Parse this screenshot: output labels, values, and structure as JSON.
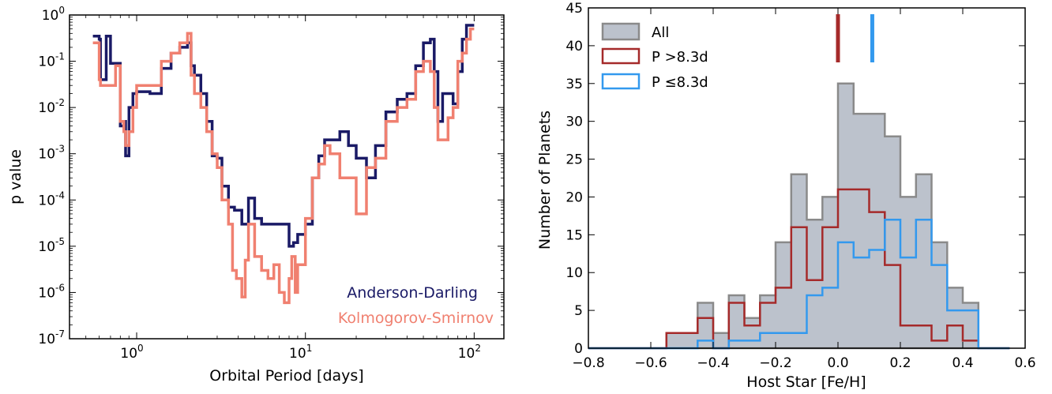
{
  "chart_data": [
    {
      "type": "line",
      "xlabel": "Orbital Period [days]",
      "ylabel": "p value",
      "xscale": "log",
      "yscale": "log",
      "xlim": [
        0.4,
        150
      ],
      "ylim": [
        1e-07,
        1
      ],
      "xticks": [
        {
          "value": 1,
          "base": "10",
          "exp": "0"
        },
        {
          "value": 10,
          "base": "10",
          "exp": "1"
        },
        {
          "value": 100,
          "base": "10",
          "exp": "2"
        }
      ],
      "yticks": [
        {
          "value": 1,
          "base": "10",
          "exp": "0"
        },
        {
          "value": 0.1,
          "base": "10",
          "exp": "-1"
        },
        {
          "value": 0.01,
          "base": "10",
          "exp": "-2"
        },
        {
          "value": 0.001,
          "base": "10",
          "exp": "-3"
        },
        {
          "value": 0.0001,
          "base": "10",
          "exp": "-4"
        },
        {
          "value": 1e-05,
          "base": "10",
          "exp": "-5"
        },
        {
          "value": 1e-06,
          "base": "10",
          "exp": "-6"
        },
        {
          "value": 1e-07,
          "base": "10",
          "exp": "-7"
        }
      ],
      "annotations": [
        {
          "text": "Anderson-Darling",
          "color": "#1a1a66"
        },
        {
          "text": "Kolmogorov-Smirnov",
          "color": "#f08070"
        }
      ],
      "series": [
        {
          "color": "#1a1a66",
          "x": [
            0.55,
            0.6,
            0.61,
            0.64,
            0.66,
            0.7,
            0.75,
            0.8,
            0.84,
            0.86,
            0.9,
            0.95,
            1.0,
            1.2,
            1.4,
            1.6,
            1.8,
            2.0,
            2.1,
            2.2,
            2.4,
            2.6,
            2.8,
            3.0,
            3.2,
            3.5,
            3.8,
            4.2,
            4.6,
            5.0,
            5.5,
            6.0,
            7.0,
            8.0,
            8.5,
            9.0,
            10.0,
            11.0,
            12.0,
            13.0,
            14.0,
            16.0,
            18.0,
            20.0,
            23.0,
            26.0,
            30.0,
            35.0,
            40.0,
            45.0,
            50.0,
            55.0,
            58.0,
            61.0,
            65.0,
            70.0,
            75.0,
            80.0,
            85.0,
            90.0,
            95.0,
            100.0
          ],
          "y": [
            0.35,
            0.3,
            0.04,
            0.04,
            0.35,
            0.09,
            0.09,
            0.004,
            0.005,
            0.0009,
            0.01,
            0.02,
            0.022,
            0.02,
            0.07,
            0.15,
            0.2,
            0.25,
            0.08,
            0.05,
            0.02,
            0.005,
            0.0009,
            0.0008,
            0.0002,
            7e-05,
            6e-05,
            3e-05,
            0.00011,
            4e-05,
            3e-05,
            3e-05,
            3e-05,
            1e-05,
            1.2e-05,
            1.8e-05,
            3e-05,
            0.0003,
            0.0009,
            0.002,
            0.002,
            0.003,
            0.0015,
            0.0008,
            0.0003,
            0.0015,
            0.008,
            0.015,
            0.02,
            0.08,
            0.25,
            0.3,
            0.06,
            0.005,
            0.02,
            0.02,
            0.012,
            0.06,
            0.3,
            0.6,
            0.6,
            0.6
          ]
        },
        {
          "color": "#f08070",
          "x": [
            0.55,
            0.6,
            0.61,
            0.7,
            0.75,
            0.8,
            0.84,
            0.86,
            0.9,
            0.95,
            1.0,
            1.2,
            1.4,
            1.6,
            1.8,
            2.0,
            2.1,
            2.2,
            2.4,
            2.6,
            2.8,
            3.0,
            3.2,
            3.5,
            3.7,
            3.9,
            4.2,
            4.4,
            4.6,
            5.0,
            5.5,
            6.0,
            6.5,
            7.0,
            7.5,
            8.0,
            8.3,
            8.7,
            9.0,
            10.0,
            11.0,
            12.0,
            13.0,
            14.0,
            16.0,
            18.0,
            20.0,
            23.0,
            26.0,
            30.0,
            35.0,
            40.0,
            45.0,
            50.0,
            55.0,
            58.0,
            61.0,
            65.0,
            70.0,
            75.0,
            80.0,
            85.0,
            90.0,
            95.0,
            100.0
          ],
          "y": [
            0.25,
            0.04,
            0.03,
            0.03,
            0.08,
            0.005,
            0.003,
            0.0015,
            0.003,
            0.01,
            0.03,
            0.03,
            0.1,
            0.15,
            0.25,
            0.4,
            0.05,
            0.02,
            0.01,
            0.003,
            0.001,
            0.0005,
            0.0001,
            3e-05,
            3e-06,
            2e-06,
            8e-07,
            5e-06,
            3e-05,
            6e-06,
            3e-06,
            2e-06,
            4e-06,
            1e-06,
            6e-07,
            2e-06,
            6e-06,
            1e-06,
            4e-06,
            4e-05,
            0.0003,
            0.0006,
            0.0015,
            0.001,
            0.0003,
            0.0003,
            5e-05,
            0.0005,
            0.0008,
            0.005,
            0.01,
            0.015,
            0.06,
            0.1,
            0.06,
            0.01,
            0.002,
            0.002,
            0.006,
            0.01,
            0.1,
            0.15,
            0.3,
            0.5,
            0.5
          ]
        }
      ]
    },
    {
      "type": "histogram",
      "xlabel": "Host Star [Fe/H]",
      "ylabel": "Number of Planets",
      "xlim": [
        -0.8,
        0.6
      ],
      "ylim": [
        0,
        45
      ],
      "xticks": [
        "−0.8",
        "−0.6",
        "−0.4",
        "−0.2",
        "0.0",
        "0.2",
        "0.4",
        "0.6"
      ],
      "xtick_values": [
        -0.8,
        -0.6,
        -0.4,
        -0.2,
        0.0,
        0.2,
        0.4,
        0.6
      ],
      "yticks": [
        "0",
        "5",
        "10",
        "15",
        "20",
        "25",
        "30",
        "35",
        "40",
        "45"
      ],
      "ytick_values": [
        0,
        5,
        10,
        15,
        20,
        25,
        30,
        35,
        40,
        45
      ],
      "legend_position": "top-left",
      "bin_edges": [
        -0.8,
        -0.75,
        -0.7,
        -0.65,
        -0.6,
        -0.55,
        -0.5,
        -0.45,
        -0.4,
        -0.35,
        -0.3,
        -0.25,
        -0.2,
        -0.15,
        -0.1,
        -0.05,
        0.0,
        0.05,
        0.1,
        0.15,
        0.2,
        0.25,
        0.3,
        0.35,
        0.4,
        0.45,
        0.5,
        0.55
      ],
      "series": [
        {
          "name": "All",
          "style": "fill",
          "fill": "#bcc2cc",
          "stroke": "#8a8a8a",
          "values": [
            0,
            0,
            0,
            0,
            0,
            2,
            2,
            6,
            2,
            7,
            4,
            7,
            14,
            23,
            17,
            20,
            35,
            31,
            31,
            28,
            20,
            23,
            14,
            8,
            6,
            0,
            0
          ]
        },
        {
          "name": "P >8.3d",
          "style": "step",
          "stroke": "#a52a2a",
          "values": [
            0,
            0,
            0,
            0,
            0,
            2,
            2,
            4,
            0,
            6,
            3,
            6,
            8,
            16,
            9,
            16,
            21,
            21,
            18,
            11,
            3,
            3,
            1,
            3,
            1,
            0,
            0
          ]
        },
        {
          "name": "P ≤8.3d",
          "style": "step",
          "stroke": "#3399ee",
          "values": [
            0,
            0,
            0,
            0,
            0,
            0,
            0,
            1,
            0,
            1,
            1,
            2,
            2,
            2,
            7,
            8,
            14,
            12,
            13,
            17,
            12,
            17,
            11,
            5,
            5,
            0,
            0
          ]
        }
      ],
      "marker_lines": [
        {
          "value": 0.0,
          "color": "#a52a2a"
        },
        {
          "value": 0.11,
          "color": "#3399ee"
        }
      ]
    }
  ]
}
